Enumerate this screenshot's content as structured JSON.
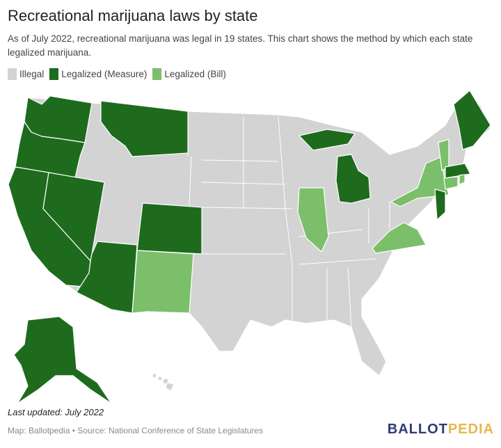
{
  "title": "Recreational marijuana laws by state",
  "subtitle": "As of July 2022, recreational marijuana was legal in 19 states. This chart shows the method by which each state legalized marijuana.",
  "legend": [
    {
      "label": "Illegal",
      "color": "#d3d3d3"
    },
    {
      "label": "Legalized (Measure)",
      "color": "#1e6b1e"
    },
    {
      "label": "Legalized (Bill)",
      "color": "#7bbf6a"
    }
  ],
  "states": {
    "measure": [
      "WA",
      "OR",
      "CA",
      "NV",
      "AZ",
      "MT",
      "CO",
      "AK",
      "MI",
      "ME",
      "MA",
      "NJ"
    ],
    "bill": [
      "NM",
      "IL",
      "VA",
      "NY",
      "VT",
      "CT",
      "RI"
    ]
  },
  "footer": {
    "updated": "Last updated: July 2022",
    "source": "Map: Ballotpedia • Source: National Conference of State Legislatures",
    "logo_a": "BALLOT",
    "logo_b": "PEDIA",
    "logo_a_color": "#2e3a78",
    "logo_b_color": "#e8b84a"
  }
}
